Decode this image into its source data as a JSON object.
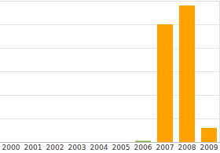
{
  "chart_data": {
    "type": "bar",
    "categories": [
      "2000",
      "2001",
      "2002",
      "2003",
      "2004",
      "2005",
      "2006",
      "2007",
      "2008",
      "2009"
    ],
    "values": [
      0,
      0,
      0,
      0,
      0,
      0,
      0.05,
      5.0,
      5.8,
      0.6
    ],
    "colors": [
      "#ffa200",
      "#ffa200",
      "#ffa200",
      "#ffa200",
      "#ffa200",
      "#ffa200",
      "#7cb342",
      "#ffa200",
      "#ffa200",
      "#ffa200"
    ],
    "ylim": [
      0,
      6
    ],
    "yticks": [
      0,
      1,
      2,
      3,
      4,
      5,
      6
    ],
    "grid": true,
    "tick_labels": "x"
  }
}
